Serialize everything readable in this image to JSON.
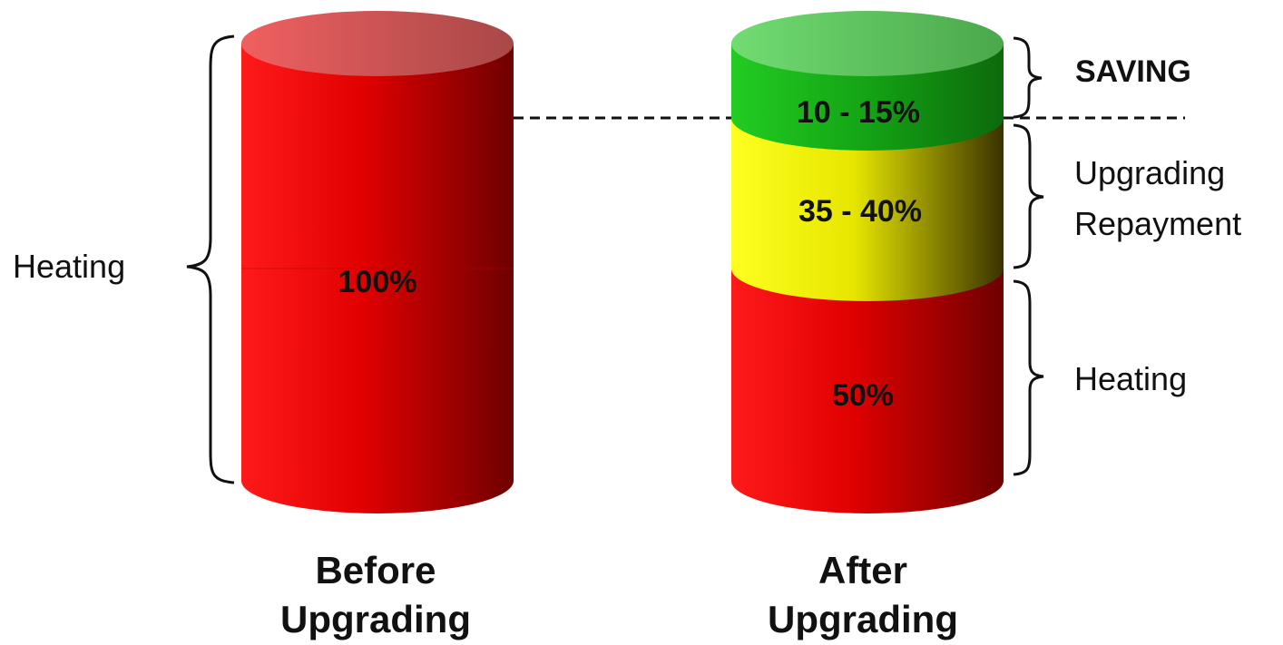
{
  "colors": {
    "heating": "#e60000",
    "repayment": "#f2f21a",
    "saving": "#2fb82f",
    "background": "#ffffff",
    "text": "#111111"
  },
  "before": {
    "title_line1": "Before",
    "title_line2": "Upgrading",
    "value_label": "100%",
    "brace_label": "Heating"
  },
  "after": {
    "title_line1": "After",
    "title_line2": "Upgrading",
    "segments": [
      {
        "key": "saving",
        "value_label": "10 - 15%",
        "brace_label_line1": "SAVING",
        "brace_label_line2": ""
      },
      {
        "key": "repayment",
        "value_label": "35 - 40%",
        "brace_label_line1": "Upgrading",
        "brace_label_line2": "Repayment"
      },
      {
        "key": "heating",
        "value_label": "50%",
        "brace_label_line1": "Heating",
        "brace_label_line2": ""
      }
    ]
  }
}
